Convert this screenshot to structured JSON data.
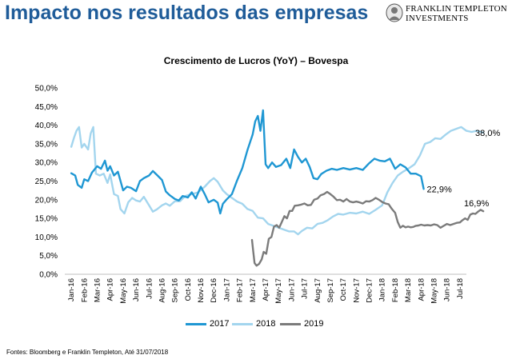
{
  "slide": {
    "title": "Impacto nos resultados das empresas",
    "logo_line1": "FRANKLIN TEMPLETON",
    "logo_line2": "INVESTMENTS",
    "source": "Fontes: Bloomberg e Franklin Templeton, Até 31/07/2018"
  },
  "colors": {
    "title": "#1f5c99",
    "s2017": "#1f97d3",
    "s2018": "#a3d5ee",
    "s2019": "#7b7b7b",
    "axis": "#bfbfbf"
  },
  "chart_data": {
    "type": "line",
    "title": "Crescimento de Lucros (YoY) – Bovespa",
    "xlabel": "",
    "ylabel": "",
    "ylim": [
      0,
      50
    ],
    "y_ticks": [
      "0,0%",
      "5,0%",
      "10,0%",
      "15,0%",
      "20,0%",
      "25,0%",
      "30,0%",
      "35,0%",
      "40,0%",
      "45,0%",
      "50,0%"
    ],
    "x_ticks": [
      "Jan-16",
      "Feb-16",
      "Mar-16",
      "Apr-16",
      "May-16",
      "Jun-16",
      "Jul-16",
      "Aug-16",
      "Sep-16",
      "Oct-16",
      "Nov-16",
      "Dec-16",
      "Jan-17",
      "Feb-17",
      "Mar-17",
      "Apr-17",
      "May-17",
      "Jun-17",
      "Jul-17",
      "Aug-17",
      "Sep-17",
      "Oct-17",
      "Nov-17",
      "Dec-17",
      "Jan-18",
      "Feb-18",
      "Mar-18",
      "Apr-18",
      "May-18",
      "Jun-18",
      "Jul-18"
    ],
    "x_unit": "months since Jan-16",
    "grid": false,
    "legend_position": "bottom",
    "series": [
      {
        "name": "2017",
        "color": "#1f97d3",
        "points": [
          [
            0,
            27.1
          ],
          [
            0.3,
            26.5
          ],
          [
            0.5,
            24
          ],
          [
            0.8,
            23.2
          ],
          [
            1.0,
            25.5
          ],
          [
            1.3,
            25
          ],
          [
            1.6,
            27.3
          ],
          [
            2.0,
            29
          ],
          [
            2.3,
            28.3
          ],
          [
            2.6,
            30.5
          ],
          [
            2.8,
            27.8
          ],
          [
            3.0,
            29
          ],
          [
            3.3,
            26.5
          ],
          [
            3.6,
            27.5
          ],
          [
            4.0,
            22.5
          ],
          [
            4.3,
            23.5
          ],
          [
            4.6,
            23.2
          ],
          [
            5.0,
            22.3
          ],
          [
            5.3,
            25
          ],
          [
            5.6,
            25.8
          ],
          [
            6.0,
            26.5
          ],
          [
            6.3,
            27.7
          ],
          [
            6.6,
            26.7
          ],
          [
            7.0,
            25.3
          ],
          [
            7.3,
            22.2
          ],
          [
            7.6,
            21.2
          ],
          [
            8.0,
            20.2
          ],
          [
            8.3,
            19.8
          ],
          [
            8.6,
            21
          ],
          [
            9.0,
            20.6
          ],
          [
            9.3,
            22
          ],
          [
            9.6,
            20.3
          ],
          [
            10.0,
            23.5
          ],
          [
            10.3,
            21.5
          ],
          [
            10.6,
            19.3
          ],
          [
            11.0,
            20
          ],
          [
            11.3,
            19.2
          ],
          [
            11.5,
            16.3
          ],
          [
            11.7,
            18.9
          ],
          [
            12.0,
            20.1
          ],
          [
            12.4,
            21.5
          ],
          [
            12.8,
            25.2
          ],
          [
            13.2,
            28.5
          ],
          [
            13.6,
            33.3
          ],
          [
            14.0,
            37.5
          ],
          [
            14.2,
            41
          ],
          [
            14.4,
            42.5
          ],
          [
            14.6,
            38.5
          ],
          [
            14.8,
            44
          ],
          [
            15.0,
            29.5
          ],
          [
            15.2,
            28.5
          ],
          [
            15.5,
            30
          ],
          [
            15.8,
            28.8
          ],
          [
            16.2,
            29.3
          ],
          [
            16.6,
            31
          ],
          [
            16.9,
            28.5
          ],
          [
            17.2,
            33.5
          ],
          [
            17.5,
            31.5
          ],
          [
            17.8,
            30
          ],
          [
            18.1,
            31
          ],
          [
            18.4,
            28.8
          ],
          [
            18.7,
            25.8
          ],
          [
            19.0,
            25.5
          ],
          [
            19.3,
            26.9
          ],
          [
            19.7,
            27.8
          ],
          [
            20.1,
            28.3
          ],
          [
            20.5,
            28
          ],
          [
            21.0,
            28.5
          ],
          [
            21.5,
            28.1
          ],
          [
            22.0,
            28.5
          ],
          [
            22.5,
            28
          ],
          [
            23.0,
            29.8
          ],
          [
            23.4,
            31
          ],
          [
            23.8,
            30.5
          ],
          [
            24.2,
            30.3
          ],
          [
            24.6,
            31
          ],
          [
            25.0,
            28.3
          ],
          [
            25.4,
            29.5
          ],
          [
            25.8,
            28.7
          ],
          [
            26.2,
            27
          ],
          [
            26.6,
            27
          ],
          [
            27.0,
            26.3
          ],
          [
            27.2,
            22.9
          ]
        ]
      },
      {
        "name": "2018",
        "color": "#a3d5ee",
        "points": [
          [
            0,
            34.2
          ],
          [
            0.2,
            36.5
          ],
          [
            0.4,
            38.5
          ],
          [
            0.6,
            39.5
          ],
          [
            0.8,
            34
          ],
          [
            1.0,
            35
          ],
          [
            1.3,
            33.5
          ],
          [
            1.5,
            37.8
          ],
          [
            1.7,
            39.5
          ],
          [
            1.9,
            27
          ],
          [
            2.2,
            26.5
          ],
          [
            2.5,
            27
          ],
          [
            2.8,
            24.5
          ],
          [
            3.0,
            26.8
          ],
          [
            3.3,
            21.5
          ],
          [
            3.6,
            21
          ],
          [
            3.8,
            17.5
          ],
          [
            4.1,
            16.3
          ],
          [
            4.4,
            19.3
          ],
          [
            4.7,
            20.5
          ],
          [
            5.0,
            19.8
          ],
          [
            5.3,
            19.5
          ],
          [
            5.6,
            20.8
          ],
          [
            6.0,
            18.5
          ],
          [
            6.3,
            16.8
          ],
          [
            6.6,
            17.4
          ],
          [
            7.0,
            18.5
          ],
          [
            7.3,
            19
          ],
          [
            7.6,
            18.4
          ],
          [
            8.0,
            19.6
          ],
          [
            8.4,
            19.6
          ],
          [
            8.8,
            21
          ],
          [
            9.3,
            21.5
          ],
          [
            9.8,
            22
          ],
          [
            10.3,
            23.5
          ],
          [
            10.7,
            25
          ],
          [
            11.0,
            25.8
          ],
          [
            11.3,
            24.8
          ],
          [
            11.7,
            22.5
          ],
          [
            12.0,
            21.5
          ],
          [
            12.4,
            20.5
          ],
          [
            12.8,
            19.5
          ],
          [
            13.2,
            18.9
          ],
          [
            13.6,
            17.5
          ],
          [
            14.0,
            17
          ],
          [
            14.4,
            15.2
          ],
          [
            14.8,
            15
          ],
          [
            15.2,
            13.5
          ],
          [
            15.6,
            13
          ],
          [
            16.0,
            12.5
          ],
          [
            16.4,
            12
          ],
          [
            16.8,
            11.5
          ],
          [
            17.2,
            11.5
          ],
          [
            17.5,
            10.7
          ],
          [
            17.8,
            11.6
          ],
          [
            18.2,
            12.5
          ],
          [
            18.6,
            12.3
          ],
          [
            19.0,
            13.5
          ],
          [
            19.4,
            13.8
          ],
          [
            19.8,
            14.5
          ],
          [
            20.2,
            15.5
          ],
          [
            20.6,
            16.2
          ],
          [
            21.0,
            16
          ],
          [
            21.5,
            16.5
          ],
          [
            22.0,
            16.3
          ],
          [
            22.5,
            16.8
          ],
          [
            23.0,
            16.2
          ],
          [
            23.5,
            17.3
          ],
          [
            24.0,
            18.5
          ],
          [
            24.4,
            22
          ],
          [
            24.8,
            24.5
          ],
          [
            25.2,
            26.5
          ],
          [
            25.6,
            27.5
          ],
          [
            26.0,
            28.3
          ],
          [
            26.5,
            29.5
          ],
          [
            26.9,
            31.8
          ],
          [
            27.3,
            35
          ],
          [
            27.7,
            35.5
          ],
          [
            28.1,
            36.5
          ],
          [
            28.5,
            36.3
          ],
          [
            28.9,
            37.5
          ],
          [
            29.3,
            38.5
          ],
          [
            29.7,
            39
          ],
          [
            30.1,
            39.5
          ],
          [
            30.5,
            38.5
          ],
          [
            30.9,
            38.2
          ],
          [
            31.3,
            38.5
          ],
          [
            31.6,
            38.2
          ],
          [
            31.8,
            38.0
          ]
        ]
      },
      {
        "name": "2019",
        "color": "#7b7b7b",
        "points": [
          [
            13.95,
            9.2
          ],
          [
            14.05,
            6
          ],
          [
            14.15,
            3
          ],
          [
            14.3,
            2.3
          ],
          [
            14.5,
            2.8
          ],
          [
            14.7,
            4
          ],
          [
            14.85,
            6
          ],
          [
            15.05,
            5.5
          ],
          [
            15.25,
            9.5
          ],
          [
            15.45,
            10
          ],
          [
            15.65,
            12.8
          ],
          [
            15.85,
            13.2
          ],
          [
            16.05,
            12.5
          ],
          [
            16.25,
            14
          ],
          [
            16.45,
            15.6
          ],
          [
            16.65,
            15
          ],
          [
            16.85,
            17
          ],
          [
            17.05,
            17
          ],
          [
            17.25,
            18.4
          ],
          [
            17.5,
            18.5
          ],
          [
            17.75,
            18.7
          ],
          [
            18.0,
            19
          ],
          [
            18.25,
            18.5
          ],
          [
            18.5,
            18.6
          ],
          [
            18.75,
            20
          ],
          [
            19.0,
            20.3
          ],
          [
            19.25,
            21.2
          ],
          [
            19.5,
            21.5
          ],
          [
            19.75,
            22.1
          ],
          [
            20.0,
            21.5
          ],
          [
            20.25,
            20.8
          ],
          [
            20.5,
            19.9
          ],
          [
            20.75,
            20
          ],
          [
            21.0,
            19.5
          ],
          [
            21.25,
            20.2
          ],
          [
            21.5,
            19.5
          ],
          [
            21.75,
            19.3
          ],
          [
            22.0,
            19.5
          ],
          [
            22.25,
            19.3
          ],
          [
            22.5,
            19
          ],
          [
            22.75,
            19.6
          ],
          [
            23.0,
            19.5
          ],
          [
            23.25,
            19.9
          ],
          [
            23.5,
            20.5
          ],
          [
            23.75,
            20
          ],
          [
            24.0,
            19.4
          ],
          [
            24.25,
            19
          ],
          [
            24.5,
            18.8
          ],
          [
            24.75,
            17.5
          ],
          [
            25.0,
            16.5
          ],
          [
            25.2,
            14
          ],
          [
            25.4,
            12.5
          ],
          [
            25.6,
            13
          ],
          [
            25.8,
            12.6
          ],
          [
            26.0,
            12.8
          ],
          [
            26.2,
            12.6
          ],
          [
            26.4,
            12.7
          ],
          [
            26.6,
            13
          ],
          [
            26.8,
            13.1
          ],
          [
            27.0,
            13.3
          ],
          [
            27.25,
            13.1
          ],
          [
            27.5,
            13.2
          ],
          [
            27.75,
            13.1
          ],
          [
            28.0,
            13.4
          ],
          [
            28.25,
            13.2
          ],
          [
            28.5,
            12.5
          ],
          [
            28.75,
            13
          ],
          [
            29.0,
            13.5
          ],
          [
            29.25,
            13.2
          ],
          [
            29.5,
            13.5
          ],
          [
            29.75,
            13.8
          ],
          [
            30.0,
            13.9
          ],
          [
            30.2,
            14.5
          ],
          [
            30.4,
            15
          ],
          [
            30.6,
            14.6
          ],
          [
            30.8,
            16
          ],
          [
            31.0,
            16.3
          ],
          [
            31.2,
            16.2
          ],
          [
            31.4,
            16.8
          ],
          [
            31.6,
            17.3
          ],
          [
            31.8,
            16.9
          ]
        ]
      }
    ],
    "annotations": [
      {
        "series": "2018",
        "text": "38,0%"
      },
      {
        "series": "2017",
        "text": "22,9%"
      },
      {
        "series": "2019",
        "text": "16,9%"
      }
    ]
  }
}
